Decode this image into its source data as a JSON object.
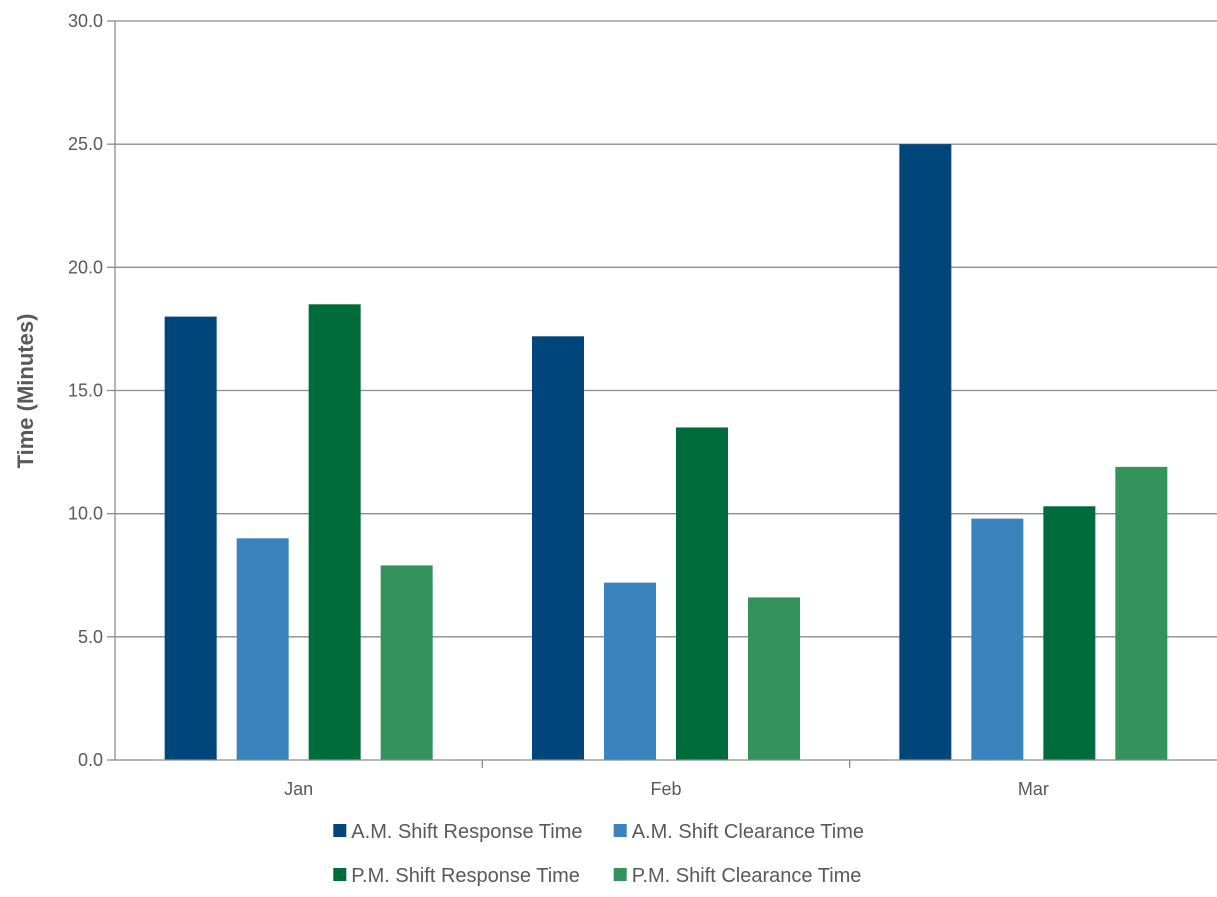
{
  "chart_data": {
    "type": "bar",
    "title": "",
    "xlabel": "",
    "ylabel": "Time (Minutes)",
    "ylim": [
      0,
      30
    ],
    "yticks": [
      "0.0",
      "5.0",
      "10.0",
      "15.0",
      "20.0",
      "25.0",
      "30.0"
    ],
    "categories": [
      "Jan",
      "Feb",
      "Mar"
    ],
    "grid": true,
    "legend_position": "bottom",
    "series": [
      {
        "name": "A.M. Shift Response Time",
        "color": "#00467a",
        "values": [
          18.0,
          17.2,
          25.0
        ]
      },
      {
        "name": "A.M. Shift Clearance Time",
        "color": "#3a84bd",
        "values": [
          9.0,
          7.2,
          9.8
        ]
      },
      {
        "name": "P.M. Shift Response Time",
        "color": "#006c3b",
        "values": [
          18.5,
          13.5,
          10.3
        ]
      },
      {
        "name": "P.M. Shift Clearance Time",
        "color": "#34935a",
        "values": [
          7.9,
          6.6,
          11.9
        ]
      }
    ]
  }
}
